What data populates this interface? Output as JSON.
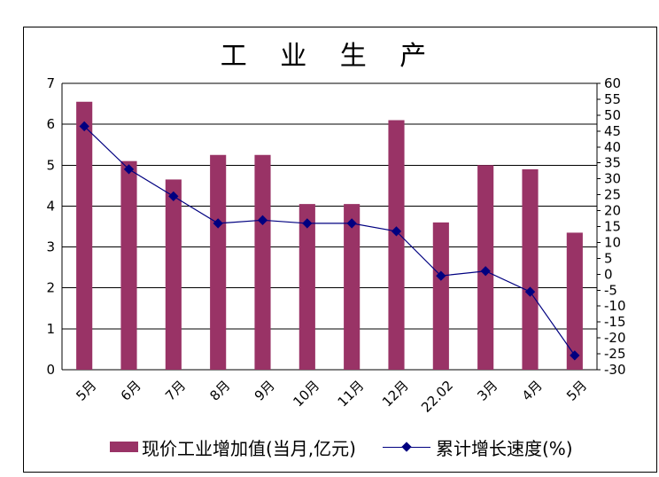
{
  "chart_data": {
    "type": "bar",
    "title": "工 业 生 产",
    "categories": [
      "5月",
      "6月",
      "7月",
      "8月",
      "9月",
      "10月",
      "11月",
      "12月",
      "22.02",
      "3月",
      "4月",
      "5月"
    ],
    "series": [
      {
        "name": "现价工业增加值(当月,亿元)",
        "type": "bar",
        "axis": "left",
        "color": "#993366",
        "values": [
          6.55,
          5.1,
          4.65,
          5.25,
          5.25,
          4.05,
          4.05,
          6.1,
          3.6,
          5.0,
          4.9,
          3.35
        ]
      },
      {
        "name": "累计增长速度(%)",
        "type": "line",
        "axis": "right",
        "color": "#000080",
        "values": [
          46.5,
          33.0,
          24.5,
          16.0,
          17.0,
          16.0,
          16.0,
          13.5,
          -0.5,
          1.0,
          -5.5,
          -25.5
        ]
      }
    ],
    "y_left": {
      "min": 0,
      "max": 7,
      "step": 1,
      "ticks": [
        "0",
        "1",
        "2",
        "3",
        "4",
        "5",
        "6",
        "7"
      ]
    },
    "y_right": {
      "min": -30,
      "max": 60,
      "step": 5,
      "ticks": [
        "-30",
        "-25",
        "-20",
        "-15",
        "-10",
        "-5",
        "0",
        "5",
        "10",
        "15",
        "20",
        "25",
        "30",
        "35",
        "40",
        "45",
        "50",
        "55",
        "60"
      ]
    },
    "grid": true,
    "legend_position": "bottom"
  }
}
